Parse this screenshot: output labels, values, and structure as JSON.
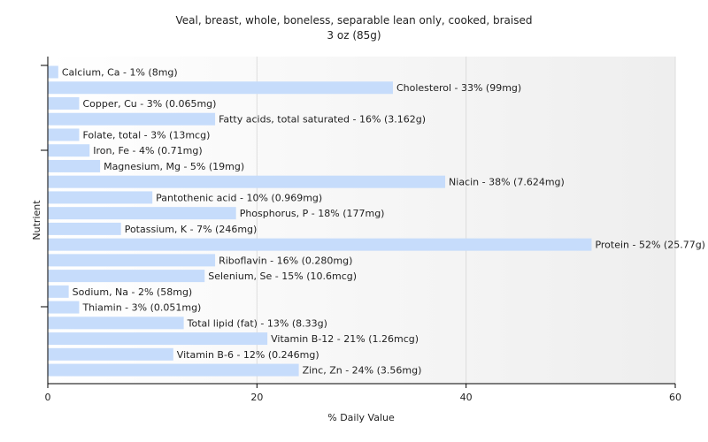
{
  "chart_data": {
    "type": "bar",
    "orientation": "horizontal",
    "title": "Veal, breast, whole, boneless, separable lean only, cooked, braised",
    "subtitle": "3 oz (85g)",
    "xlabel": "% Daily Value",
    "ylabel": "Nutrient",
    "xlim": [
      0,
      60
    ],
    "xticks": [
      "0",
      "20",
      "40",
      "60"
    ],
    "grid": true,
    "bar_color": "#c6dcfb",
    "categories": [
      "Calcium, Ca",
      "Cholesterol",
      "Copper, Cu",
      "Fatty acids, total saturated",
      "Folate, total",
      "Iron, Fe",
      "Magnesium, Mg",
      "Niacin",
      "Pantothenic acid",
      "Phosphorus, P",
      "Potassium, K",
      "Protein",
      "Riboflavin",
      "Selenium, Se",
      "Sodium, Na",
      "Thiamin",
      "Total lipid (fat)",
      "Vitamin B-12",
      "Vitamin B-6",
      "Zinc, Zn"
    ],
    "values": [
      1,
      33,
      3,
      16,
      3,
      4,
      5,
      38,
      10,
      18,
      7,
      52,
      16,
      15,
      2,
      3,
      13,
      21,
      12,
      24
    ],
    "labels": [
      "Calcium, Ca - 1% (8mg)",
      "Cholesterol - 33% (99mg)",
      "Copper, Cu - 3% (0.065mg)",
      "Fatty acids, total saturated - 16% (3.162g)",
      "Folate, total - 3% (13mcg)",
      "Iron, Fe - 4% (0.71mg)",
      "Magnesium, Mg - 5% (19mg)",
      "Niacin - 38% (7.624mg)",
      "Pantothenic acid - 10% (0.969mg)",
      "Phosphorus, P - 18% (177mg)",
      "Potassium, K - 7% (246mg)",
      "Protein - 52% (25.77g)",
      "Riboflavin - 16% (0.280mg)",
      "Selenium, Se - 15% (10.6mcg)",
      "Sodium, Na - 2% (58mg)",
      "Thiamin - 3% (0.051mg)",
      "Total lipid (fat) - 13% (8.33g)",
      "Vitamin B-12 - 21% (1.26mcg)",
      "Vitamin B-6 - 12% (0.246mg)",
      "Zinc, Zn - 24% (3.56mg)"
    ]
  }
}
